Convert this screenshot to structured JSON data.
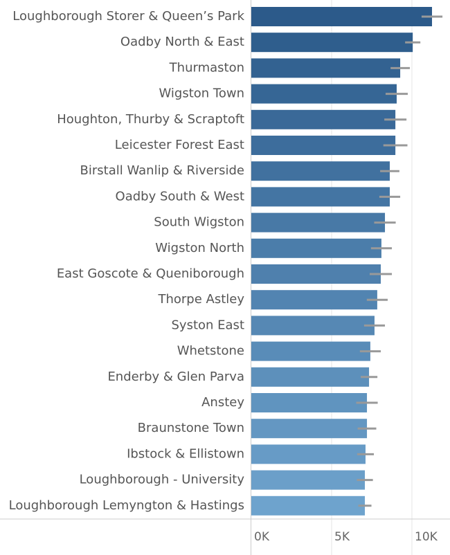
{
  "chart_data": {
    "type": "hbar",
    "categories": [
      "Loughborough Storer & Queen’s Park",
      "Oadby North & East",
      "Thurmaston",
      "Wigston Town",
      "Houghton, Thurby & Scraptoft",
      "Leicester Forest East",
      "Birstall Wanlip & Riverside",
      "Oadby South & West",
      "South Wigston",
      "Wigston North",
      "East Goscote & Queniborough",
      "Thorpe Astley",
      "Syston East",
      "Whetstone",
      "Enderby & Glen Parva",
      "Anstey",
      "Braunstone Town",
      "Ibstock & Ellistown",
      "Loughborough - University",
      "Loughborough Lemyngton & Hastings"
    ],
    "values": [
      11250,
      10050,
      9270,
      9050,
      8970,
      8970,
      8620,
      8620,
      8320,
      8100,
      8060,
      7840,
      7670,
      7410,
      7330,
      7200,
      7200,
      7110,
      7070,
      7070
    ],
    "errors": [
      650,
      475,
      600,
      690,
      690,
      750,
      600,
      650,
      670,
      650,
      690,
      650,
      650,
      650,
      520,
      670,
      580,
      520,
      500,
      410
    ],
    "colors": [
      "#2c5a8a",
      "#2f5e8d",
      "#336291",
      "#366695",
      "#3a6998",
      "#3d6d9c",
      "#41719f",
      "#4475a3",
      "#4879a6",
      "#4b7daa",
      "#4f80ad",
      "#5284b1",
      "#5688b4",
      "#598cb8",
      "#5d90bb",
      "#6094bf",
      "#6497c2",
      "#679bc6",
      "#6b9fc9",
      "#6ea3cd"
    ],
    "error_color": "#999999",
    "xlim": [
      0,
      12370
    ],
    "xticks": [
      {
        "value": 0,
        "label": "0K"
      },
      {
        "value": 5000,
        "label": "5K"
      },
      {
        "value": 10000,
        "label": "10K"
      }
    ],
    "grid": true
  }
}
